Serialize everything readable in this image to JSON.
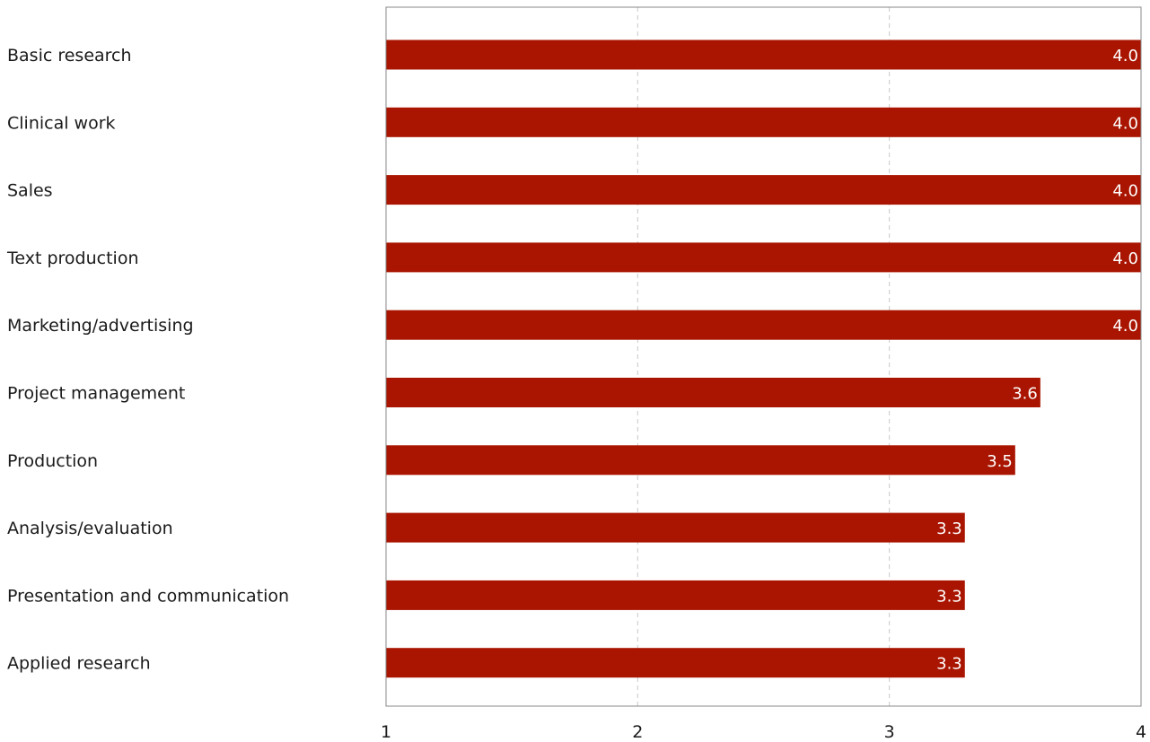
{
  "chart_data": {
    "type": "bar",
    "orientation": "horizontal",
    "categories": [
      "Basic research",
      "Clinical work",
      "Sales",
      "Text production",
      "Marketing/advertising",
      "Project management",
      "Production",
      "Analysis/evaluation",
      "Presentation and communication",
      "Applied research"
    ],
    "values": [
      4.0,
      4.0,
      4.0,
      4.0,
      4.0,
      3.6,
      3.5,
      3.3,
      3.3,
      3.3
    ],
    "value_labels": [
      "4.0",
      "4.0",
      "4.0",
      "4.0",
      "4.0",
      "3.6",
      "3.5",
      "3.3",
      "3.3",
      "3.3"
    ],
    "xlim": [
      1,
      4
    ],
    "xticks": [
      "1",
      "2",
      "3",
      "4"
    ],
    "grid": "vertical dashed",
    "bar_color": "#a91500",
    "title": "",
    "xlabel": "",
    "ylabel": ""
  }
}
